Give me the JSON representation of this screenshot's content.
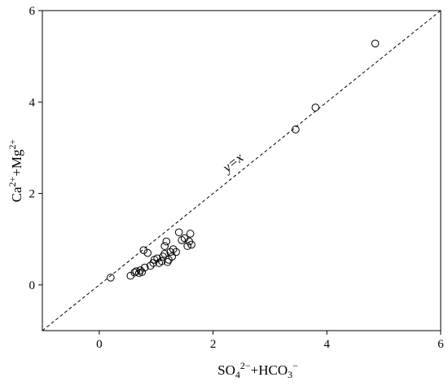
{
  "chart_data": {
    "type": "scatter",
    "xlim": [
      -1,
      6
    ],
    "ylim": [
      -1,
      6
    ],
    "x_ticks": [
      0,
      2,
      4,
      6
    ],
    "y_ticks": [
      0,
      2,
      4,
      6
    ],
    "grid": false,
    "legend": "none",
    "xlabel": {
      "parts": [
        {
          "t": "SO",
          "s": "n"
        },
        {
          "t": "4",
          "s": "sub"
        },
        {
          "t": "2−",
          "s": "sup"
        },
        {
          "t": "+HCO",
          "s": "n"
        },
        {
          "t": "3",
          "s": "sub"
        },
        {
          "t": "−",
          "s": "sup"
        }
      ]
    },
    "ylabel": {
      "parts": [
        {
          "t": "Ca",
          "s": "n"
        },
        {
          "t": "2+",
          "s": "sup"
        },
        {
          "t": "+Mg",
          "s": "n"
        },
        {
          "t": "2+",
          "s": "sup"
        }
      ]
    },
    "reference_line": {
      "label": "y=x",
      "label_at": [
        2.4,
        2.6
      ],
      "style": "dashed"
    },
    "marker": {
      "shape": "open-circle",
      "color": "#000000"
    },
    "series": [
      {
        "points": [
          [
            0.2,
            0.16
          ],
          [
            0.55,
            0.2
          ],
          [
            0.62,
            0.27
          ],
          [
            0.65,
            0.3
          ],
          [
            0.7,
            0.26
          ],
          [
            0.72,
            0.32
          ],
          [
            0.75,
            0.28
          ],
          [
            0.8,
            0.38
          ],
          [
            0.78,
            0.76
          ],
          [
            0.85,
            0.7
          ],
          [
            0.9,
            0.42
          ],
          [
            0.95,
            0.48
          ],
          [
            0.97,
            0.55
          ],
          [
            1.02,
            0.58
          ],
          [
            1.05,
            0.48
          ],
          [
            1.1,
            0.52
          ],
          [
            1.12,
            0.62
          ],
          [
            1.15,
            0.68
          ],
          [
            1.15,
            0.85
          ],
          [
            1.18,
            0.95
          ],
          [
            1.2,
            0.5
          ],
          [
            1.22,
            0.55
          ],
          [
            1.25,
            0.72
          ],
          [
            1.28,
            0.62
          ],
          [
            1.3,
            0.78
          ],
          [
            1.35,
            0.72
          ],
          [
            1.4,
            1.15
          ],
          [
            1.45,
            0.98
          ],
          [
            1.5,
            1.02
          ],
          [
            1.55,
            0.85
          ],
          [
            1.58,
            0.95
          ],
          [
            1.6,
            1.12
          ],
          [
            1.62,
            0.88
          ],
          [
            3.45,
            3.4
          ],
          [
            3.8,
            3.88
          ],
          [
            4.85,
            5.28
          ]
        ]
      }
    ]
  }
}
